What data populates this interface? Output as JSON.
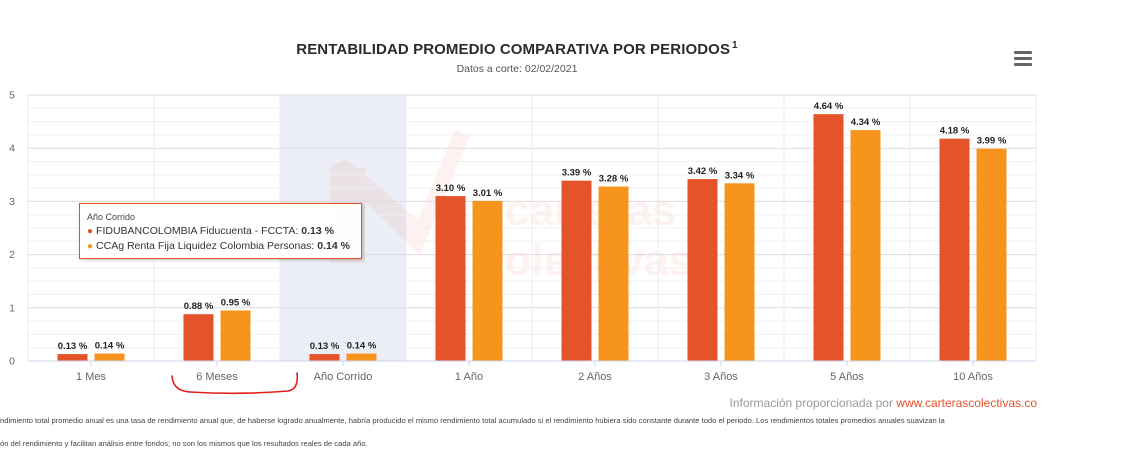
{
  "title": "RENTABILIDAD PROMEDIO COMPARATIVA POR PERIODOS",
  "title_sup": "1",
  "subtitle": "Datos a corte: 02/02/2021",
  "watermark": [
    "carteras",
    "colectivas"
  ],
  "tooltip": {
    "header": "Año Corrido",
    "rows": [
      {
        "label": "FIDUBANCOLOMBIA Fiducuenta - FCCTA:",
        "value": "0.13 %",
        "color": "#e5532a"
      },
      {
        "label": "CCAg Renta Fija Liquidez Colombia Personas:",
        "value": "0.14 %",
        "color": "#f7941d"
      }
    ]
  },
  "source": {
    "text": "Información proporcionada por ",
    "link": "www.carterascolectivas.co"
  },
  "footnotes": [
    "ndimiento total promedio anual es una tasa de rendimiento anual que, de haberse logrado anualmente, habría producido el mismo rendimiento total acumulado si el rendimiento hubiera sido constante durante todo el periodo. Los rendimientos totales promedios anuales suavizan la",
    "ón del rendimiento y facilitan análisis entre fondos; no son los mismos que los resultados reales de cada año."
  ],
  "chart_data": {
    "type": "bar",
    "categories": [
      "1 Mes",
      "6 Meses",
      "Año Corrido",
      "1 Año",
      "2 Años",
      "3 Años",
      "5 Años",
      "10 Años"
    ],
    "series": [
      {
        "name": "FIDUBANCOLOMBIA Fiducuenta - FCCTA",
        "color": "#e5532a",
        "values": [
          0.13,
          0.88,
          0.13,
          3.1,
          3.39,
          3.42,
          4.64,
          4.18
        ],
        "labels": [
          "0.13 %",
          "0.88 %",
          "0.13 %",
          "3.10 %",
          "3.39 %",
          "3.42 %",
          "4.64 %",
          "4.18 %"
        ]
      },
      {
        "name": "CCAg Renta Fija Liquidez Colombia Personas",
        "color": "#f7941d",
        "values": [
          0.14,
          0.95,
          0.14,
          3.01,
          3.28,
          3.34,
          4.34,
          3.99
        ],
        "labels": [
          "0.14 %",
          "0.95 %",
          "0.14 %",
          "3.01 %",
          "3.28 %",
          "3.34 %",
          "4.34 %",
          "3.99 %"
        ]
      }
    ],
    "y_ticks": [
      "0",
      "1",
      "2",
      "3",
      "4",
      "5"
    ],
    "ylim": [
      0,
      5
    ],
    "highlighted_category": "Año Corrido",
    "grid": true,
    "annotation": "hand-drawn red curve under 6 Meses"
  }
}
